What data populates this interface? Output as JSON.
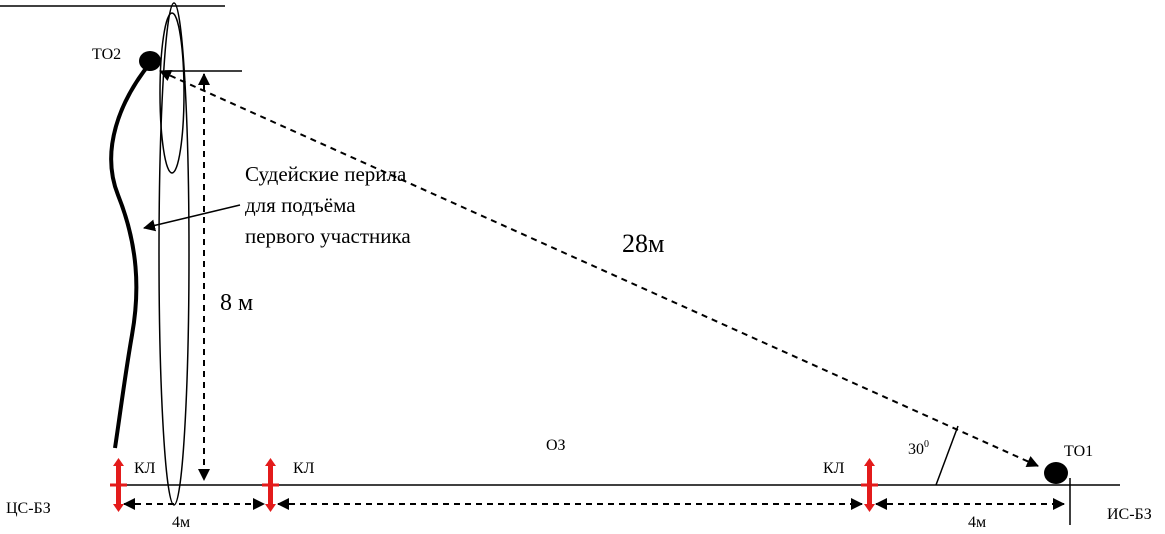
{
  "header_line": "",
  "labels": {
    "to2": "ТО2",
    "to1": "ТО1",
    "oz": "ОЗ",
    "cs_bz": "ЦС-БЗ",
    "is_bz": "ИС-БЗ",
    "kl_1": "КЛ",
    "kl_2": "КЛ",
    "kl_3": "КЛ",
    "len_28": "28м",
    "height_8": "8 м",
    "dist_left": "4м",
    "dist_right": "4м",
    "angle_base": "30",
    "angle_sup": "0"
  },
  "rail_note": {
    "line1": "Судейские перила",
    "line2": "для подъёма",
    "line3": "первого участника"
  },
  "colors": {
    "marker": "#e31b1b",
    "ink": "#000000"
  }
}
